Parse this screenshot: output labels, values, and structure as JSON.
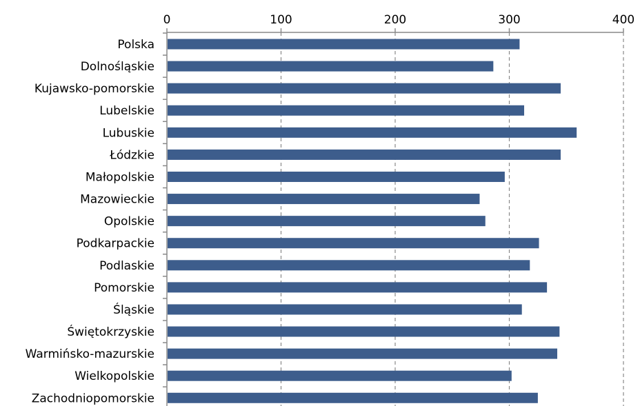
{
  "chart_data": {
    "type": "bar",
    "orientation": "horizontal",
    "title": "",
    "xlabel": "",
    "ylabel": "",
    "xlim": [
      0,
      400
    ],
    "x_ticks": [
      "0",
      "100",
      "200",
      "300",
      "400"
    ],
    "x_tick_values": [
      0,
      100,
      200,
      300,
      400
    ],
    "x_axis_position": "top",
    "grid": "vertical dashed",
    "legend": "none",
    "bar_color": "#3d5d8c",
    "categories": [
      "Polska",
      "Dolnośląskie",
      "Kujawsko-pomorskie",
      "Lubelskie",
      "Lubuskie",
      "Łódzkie",
      "Małopolskie",
      "Mazowieckie",
      "Opolskie",
      "Podkarpackie",
      "Podlaskie",
      "Pomorskie",
      "Śląskie",
      "Świętokrzyskie",
      "Warmińsko-mazurskie",
      "Wielkopolskie",
      "Zachodniopomorskie"
    ],
    "values": [
      309,
      286,
      345,
      313,
      359,
      345,
      296,
      274,
      279,
      326,
      318,
      333,
      311,
      344,
      342,
      302,
      325
    ]
  }
}
